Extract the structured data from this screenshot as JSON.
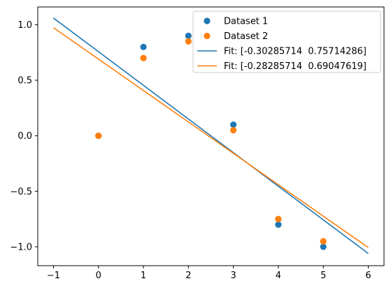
{
  "chart_data": {
    "type": "scatter",
    "title": "",
    "xlabel": "",
    "ylabel": "",
    "xlim": [
      -1.35,
      6.35
    ],
    "ylim": [
      -1.17,
      1.16
    ],
    "xticks": [
      -1,
      0,
      1,
      2,
      3,
      4,
      5,
      6
    ],
    "xtick_labels": [
      "−1",
      "0",
      "1",
      "2",
      "3",
      "4",
      "5",
      "6"
    ],
    "yticks": [
      -1.0,
      -0.5,
      0.0,
      0.5,
      1.0
    ],
    "ytick_labels": [
      "−1.0",
      "−0.5",
      "0.0",
      "0.5",
      "1.0"
    ],
    "grid": false,
    "legend_position": "top-right",
    "colors": {
      "blue": "#1f77b4",
      "orange": "#ff7f0e"
    },
    "series": [
      {
        "kind": "scatter",
        "name": "Dataset 1",
        "color": "#1f77b4",
        "x": [
          0,
          1,
          2,
          3,
          4,
          5
        ],
        "y": [
          0.0,
          0.8,
          0.9,
          0.1,
          -0.8,
          -1.0
        ]
      },
      {
        "kind": "scatter",
        "name": "Dataset 2",
        "color": "#ff7f0e",
        "x": [
          0,
          1,
          2,
          3,
          4,
          5
        ],
        "y": [
          0.0,
          0.7,
          0.85,
          0.05,
          -0.75,
          -0.95
        ]
      },
      {
        "kind": "line",
        "name": "Fit: [-0.30285714  0.75714286]",
        "color": "#1f77b4",
        "slope": -0.30285714,
        "intercept": 0.75714286,
        "x_range": [
          -1,
          6
        ]
      },
      {
        "kind": "line",
        "name": "Fit: [-0.28285714  0.69047619]",
        "color": "#ff7f0e",
        "slope": -0.28285714,
        "intercept": 0.69047619,
        "x_range": [
          -1,
          6
        ]
      }
    ]
  }
}
